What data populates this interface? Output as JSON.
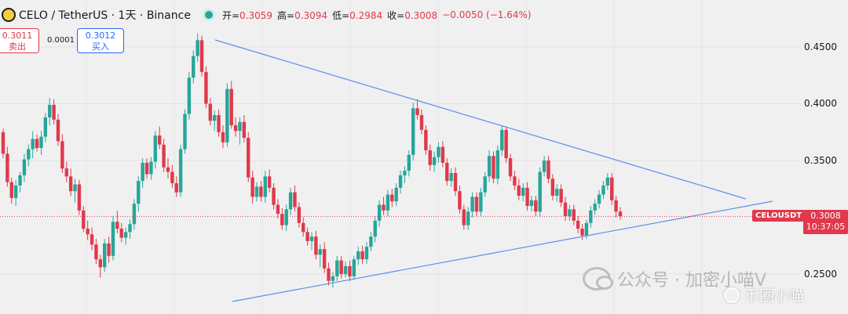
{
  "header": {
    "title": "CELO / TetherUS · 1天 · Binance",
    "open_label": "开=",
    "open": "0.3059",
    "high_label": "高=",
    "high": "0.3094",
    "low_label": "低=",
    "low": "0.2984",
    "close_label": "收=",
    "close": "0.3008",
    "change": "−0.0050 (−1.64%)"
  },
  "trade": {
    "sell_price": "0.3011",
    "sell_label": "卖出",
    "spread": "0.0001",
    "buy_price": "0.3012",
    "buy_label": "买入"
  },
  "price_axis": {
    "labels": [
      "0.4500",
      "0.4000",
      "0.3500",
      "0.2500"
    ]
  },
  "ticker_tag": {
    "symbol": "CELOUSDT",
    "price": "0.3008",
    "countdown": "10:37:05"
  },
  "watermark": {
    "text": "公众号 · 加密小喵V",
    "sub": "币圈小喵"
  },
  "colors": {
    "up": "#26a69a",
    "down": "#e0394b",
    "trendline": "#5b8def",
    "background": "#f0f0f0"
  },
  "chart_data": {
    "type": "candlestick",
    "ylim": [
      0.225,
      0.465
    ],
    "yticks": [
      0.25,
      0.35,
      0.4,
      0.45
    ],
    "last_price": 0.3008,
    "candles": [
      [
        0.375,
        0.378,
        0.352,
        0.356
      ],
      [
        0.356,
        0.362,
        0.327,
        0.331
      ],
      [
        0.331,
        0.335,
        0.312,
        0.317
      ],
      [
        0.317,
        0.333,
        0.31,
        0.328
      ],
      [
        0.328,
        0.34,
        0.322,
        0.337
      ],
      [
        0.337,
        0.356,
        0.331,
        0.351
      ],
      [
        0.351,
        0.364,
        0.345,
        0.36
      ],
      [
        0.36,
        0.376,
        0.352,
        0.369
      ],
      [
        0.369,
        0.373,
        0.358,
        0.361
      ],
      [
        0.361,
        0.376,
        0.355,
        0.371
      ],
      [
        0.371,
        0.392,
        0.366,
        0.388
      ],
      [
        0.388,
        0.405,
        0.381,
        0.399
      ],
      [
        0.399,
        0.404,
        0.382,
        0.386
      ],
      [
        0.386,
        0.391,
        0.363,
        0.367
      ],
      [
        0.367,
        0.373,
        0.339,
        0.343
      ],
      [
        0.343,
        0.349,
        0.331,
        0.336
      ],
      [
        0.336,
        0.343,
        0.319,
        0.323
      ],
      [
        0.323,
        0.334,
        0.313,
        0.329
      ],
      [
        0.329,
        0.333,
        0.302,
        0.306
      ],
      [
        0.306,
        0.31,
        0.287,
        0.29
      ],
      [
        0.29,
        0.297,
        0.28,
        0.285
      ],
      [
        0.285,
        0.291,
        0.271,
        0.276
      ],
      [
        0.276,
        0.281,
        0.259,
        0.263
      ],
      [
        0.263,
        0.267,
        0.247,
        0.256
      ],
      [
        0.256,
        0.281,
        0.252,
        0.277
      ],
      [
        0.277,
        0.283,
        0.26,
        0.266
      ],
      [
        0.266,
        0.301,
        0.262,
        0.296
      ],
      [
        0.296,
        0.306,
        0.286,
        0.29
      ],
      [
        0.29,
        0.295,
        0.278,
        0.282
      ],
      [
        0.282,
        0.291,
        0.276,
        0.287
      ],
      [
        0.287,
        0.298,
        0.281,
        0.294
      ],
      [
        0.294,
        0.316,
        0.289,
        0.312
      ],
      [
        0.312,
        0.336,
        0.305,
        0.332
      ],
      [
        0.332,
        0.352,
        0.326,
        0.348
      ],
      [
        0.348,
        0.352,
        0.334,
        0.338
      ],
      [
        0.338,
        0.353,
        0.333,
        0.349
      ],
      [
        0.349,
        0.376,
        0.343,
        0.372
      ],
      [
        0.372,
        0.38,
        0.36,
        0.364
      ],
      [
        0.364,
        0.369,
        0.34,
        0.344
      ],
      [
        0.344,
        0.352,
        0.334,
        0.34
      ],
      [
        0.34,
        0.346,
        0.326,
        0.33
      ],
      [
        0.33,
        0.336,
        0.318,
        0.322
      ],
      [
        0.322,
        0.364,
        0.318,
        0.36
      ],
      [
        0.36,
        0.395,
        0.356,
        0.391
      ],
      [
        0.391,
        0.428,
        0.386,
        0.423
      ],
      [
        0.423,
        0.447,
        0.418,
        0.442
      ],
      [
        0.442,
        0.462,
        0.437,
        0.456
      ],
      [
        0.456,
        0.46,
        0.424,
        0.428
      ],
      [
        0.428,
        0.433,
        0.396,
        0.4
      ],
      [
        0.4,
        0.405,
        0.381,
        0.385
      ],
      [
        0.385,
        0.394,
        0.376,
        0.39
      ],
      [
        0.39,
        0.395,
        0.371,
        0.375
      ],
      [
        0.375,
        0.381,
        0.361,
        0.366
      ],
      [
        0.366,
        0.418,
        0.362,
        0.413
      ],
      [
        0.413,
        0.42,
        0.378,
        0.381
      ],
      [
        0.381,
        0.388,
        0.371,
        0.376
      ],
      [
        0.376,
        0.388,
        0.364,
        0.384
      ],
      [
        0.384,
        0.39,
        0.366,
        0.37
      ],
      [
        0.37,
        0.375,
        0.331,
        0.335
      ],
      [
        0.335,
        0.341,
        0.312,
        0.318
      ],
      [
        0.318,
        0.331,
        0.314,
        0.327
      ],
      [
        0.327,
        0.332,
        0.314,
        0.318
      ],
      [
        0.318,
        0.341,
        0.313,
        0.336
      ],
      [
        0.336,
        0.342,
        0.322,
        0.326
      ],
      [
        0.326,
        0.33,
        0.307,
        0.311
      ],
      [
        0.311,
        0.316,
        0.299,
        0.303
      ],
      [
        0.303,
        0.308,
        0.289,
        0.293
      ],
      [
        0.293,
        0.311,
        0.288,
        0.307
      ],
      [
        0.307,
        0.326,
        0.302,
        0.322
      ],
      [
        0.322,
        0.328,
        0.305,
        0.309
      ],
      [
        0.309,
        0.313,
        0.291,
        0.295
      ],
      [
        0.295,
        0.3,
        0.283,
        0.287
      ],
      [
        0.287,
        0.291,
        0.275,
        0.279
      ],
      [
        0.279,
        0.287,
        0.271,
        0.283
      ],
      [
        0.283,
        0.288,
        0.263,
        0.267
      ],
      [
        0.267,
        0.276,
        0.256,
        0.272
      ],
      [
        0.272,
        0.278,
        0.251,
        0.255
      ],
      [
        0.255,
        0.26,
        0.24,
        0.244
      ],
      [
        0.244,
        0.252,
        0.238,
        0.248
      ],
      [
        0.248,
        0.266,
        0.244,
        0.262
      ],
      [
        0.262,
        0.266,
        0.246,
        0.25
      ],
      [
        0.25,
        0.261,
        0.247,
        0.257
      ],
      [
        0.257,
        0.262,
        0.244,
        0.248
      ],
      [
        0.248,
        0.266,
        0.245,
        0.263
      ],
      [
        0.263,
        0.274,
        0.258,
        0.27
      ],
      [
        0.27,
        0.275,
        0.259,
        0.263
      ],
      [
        0.263,
        0.278,
        0.259,
        0.274
      ],
      [
        0.274,
        0.287,
        0.27,
        0.283
      ],
      [
        0.283,
        0.301,
        0.278,
        0.297
      ],
      [
        0.297,
        0.315,
        0.292,
        0.311
      ],
      [
        0.311,
        0.318,
        0.302,
        0.306
      ],
      [
        0.306,
        0.324,
        0.301,
        0.32
      ],
      [
        0.32,
        0.325,
        0.309,
        0.314
      ],
      [
        0.314,
        0.33,
        0.31,
        0.326
      ],
      [
        0.326,
        0.341,
        0.321,
        0.337
      ],
      [
        0.337,
        0.345,
        0.33,
        0.341
      ],
      [
        0.341,
        0.359,
        0.336,
        0.355
      ],
      [
        0.355,
        0.401,
        0.35,
        0.396
      ],
      [
        0.396,
        0.404,
        0.386,
        0.39
      ],
      [
        0.39,
        0.395,
        0.373,
        0.377
      ],
      [
        0.377,
        0.381,
        0.355,
        0.359
      ],
      [
        0.359,
        0.364,
        0.341,
        0.346
      ],
      [
        0.346,
        0.358,
        0.34,
        0.353
      ],
      [
        0.353,
        0.366,
        0.348,
        0.362
      ],
      [
        0.362,
        0.367,
        0.344,
        0.348
      ],
      [
        0.348,
        0.352,
        0.328,
        0.332
      ],
      [
        0.332,
        0.343,
        0.327,
        0.339
      ],
      [
        0.339,
        0.344,
        0.319,
        0.323
      ],
      [
        0.323,
        0.328,
        0.303,
        0.307
      ],
      [
        0.307,
        0.311,
        0.289,
        0.293
      ],
      [
        0.293,
        0.309,
        0.289,
        0.305
      ],
      [
        0.305,
        0.322,
        0.3,
        0.318
      ],
      [
        0.318,
        0.322,
        0.301,
        0.305
      ],
      [
        0.305,
        0.326,
        0.301,
        0.322
      ],
      [
        0.322,
        0.34,
        0.318,
        0.336
      ],
      [
        0.336,
        0.359,
        0.331,
        0.354
      ],
      [
        0.354,
        0.358,
        0.33,
        0.334
      ],
      [
        0.334,
        0.363,
        0.329,
        0.359
      ],
      [
        0.359,
        0.381,
        0.354,
        0.377
      ],
      [
        0.377,
        0.38,
        0.348,
        0.352
      ],
      [
        0.352,
        0.356,
        0.332,
        0.336
      ],
      [
        0.336,
        0.341,
        0.324,
        0.328
      ],
      [
        0.328,
        0.334,
        0.315,
        0.319
      ],
      [
        0.319,
        0.33,
        0.314,
        0.326
      ],
      [
        0.326,
        0.331,
        0.306,
        0.31
      ],
      [
        0.31,
        0.319,
        0.305,
        0.315
      ],
      [
        0.315,
        0.319,
        0.301,
        0.305
      ],
      [
        0.305,
        0.344,
        0.301,
        0.34
      ],
      [
        0.34,
        0.354,
        0.336,
        0.35
      ],
      [
        0.35,
        0.354,
        0.33,
        0.334
      ],
      [
        0.334,
        0.338,
        0.315,
        0.319
      ],
      [
        0.319,
        0.329,
        0.314,
        0.325
      ],
      [
        0.325,
        0.329,
        0.309,
        0.313
      ],
      [
        0.313,
        0.318,
        0.297,
        0.301
      ],
      [
        0.301,
        0.311,
        0.297,
        0.307
      ],
      [
        0.307,
        0.311,
        0.293,
        0.297
      ],
      [
        0.297,
        0.301,
        0.286,
        0.29
      ],
      [
        0.29,
        0.294,
        0.28,
        0.284
      ],
      [
        0.284,
        0.298,
        0.281,
        0.295
      ],
      [
        0.295,
        0.31,
        0.291,
        0.306
      ],
      [
        0.306,
        0.316,
        0.302,
        0.312
      ],
      [
        0.312,
        0.324,
        0.308,
        0.32
      ],
      [
        0.32,
        0.332,
        0.316,
        0.328
      ],
      [
        0.328,
        0.339,
        0.324,
        0.335
      ],
      [
        0.335,
        0.339,
        0.311,
        0.315
      ],
      [
        0.315,
        0.319,
        0.3,
        0.305
      ],
      [
        0.305,
        0.309,
        0.298,
        0.301
      ]
    ]
  }
}
